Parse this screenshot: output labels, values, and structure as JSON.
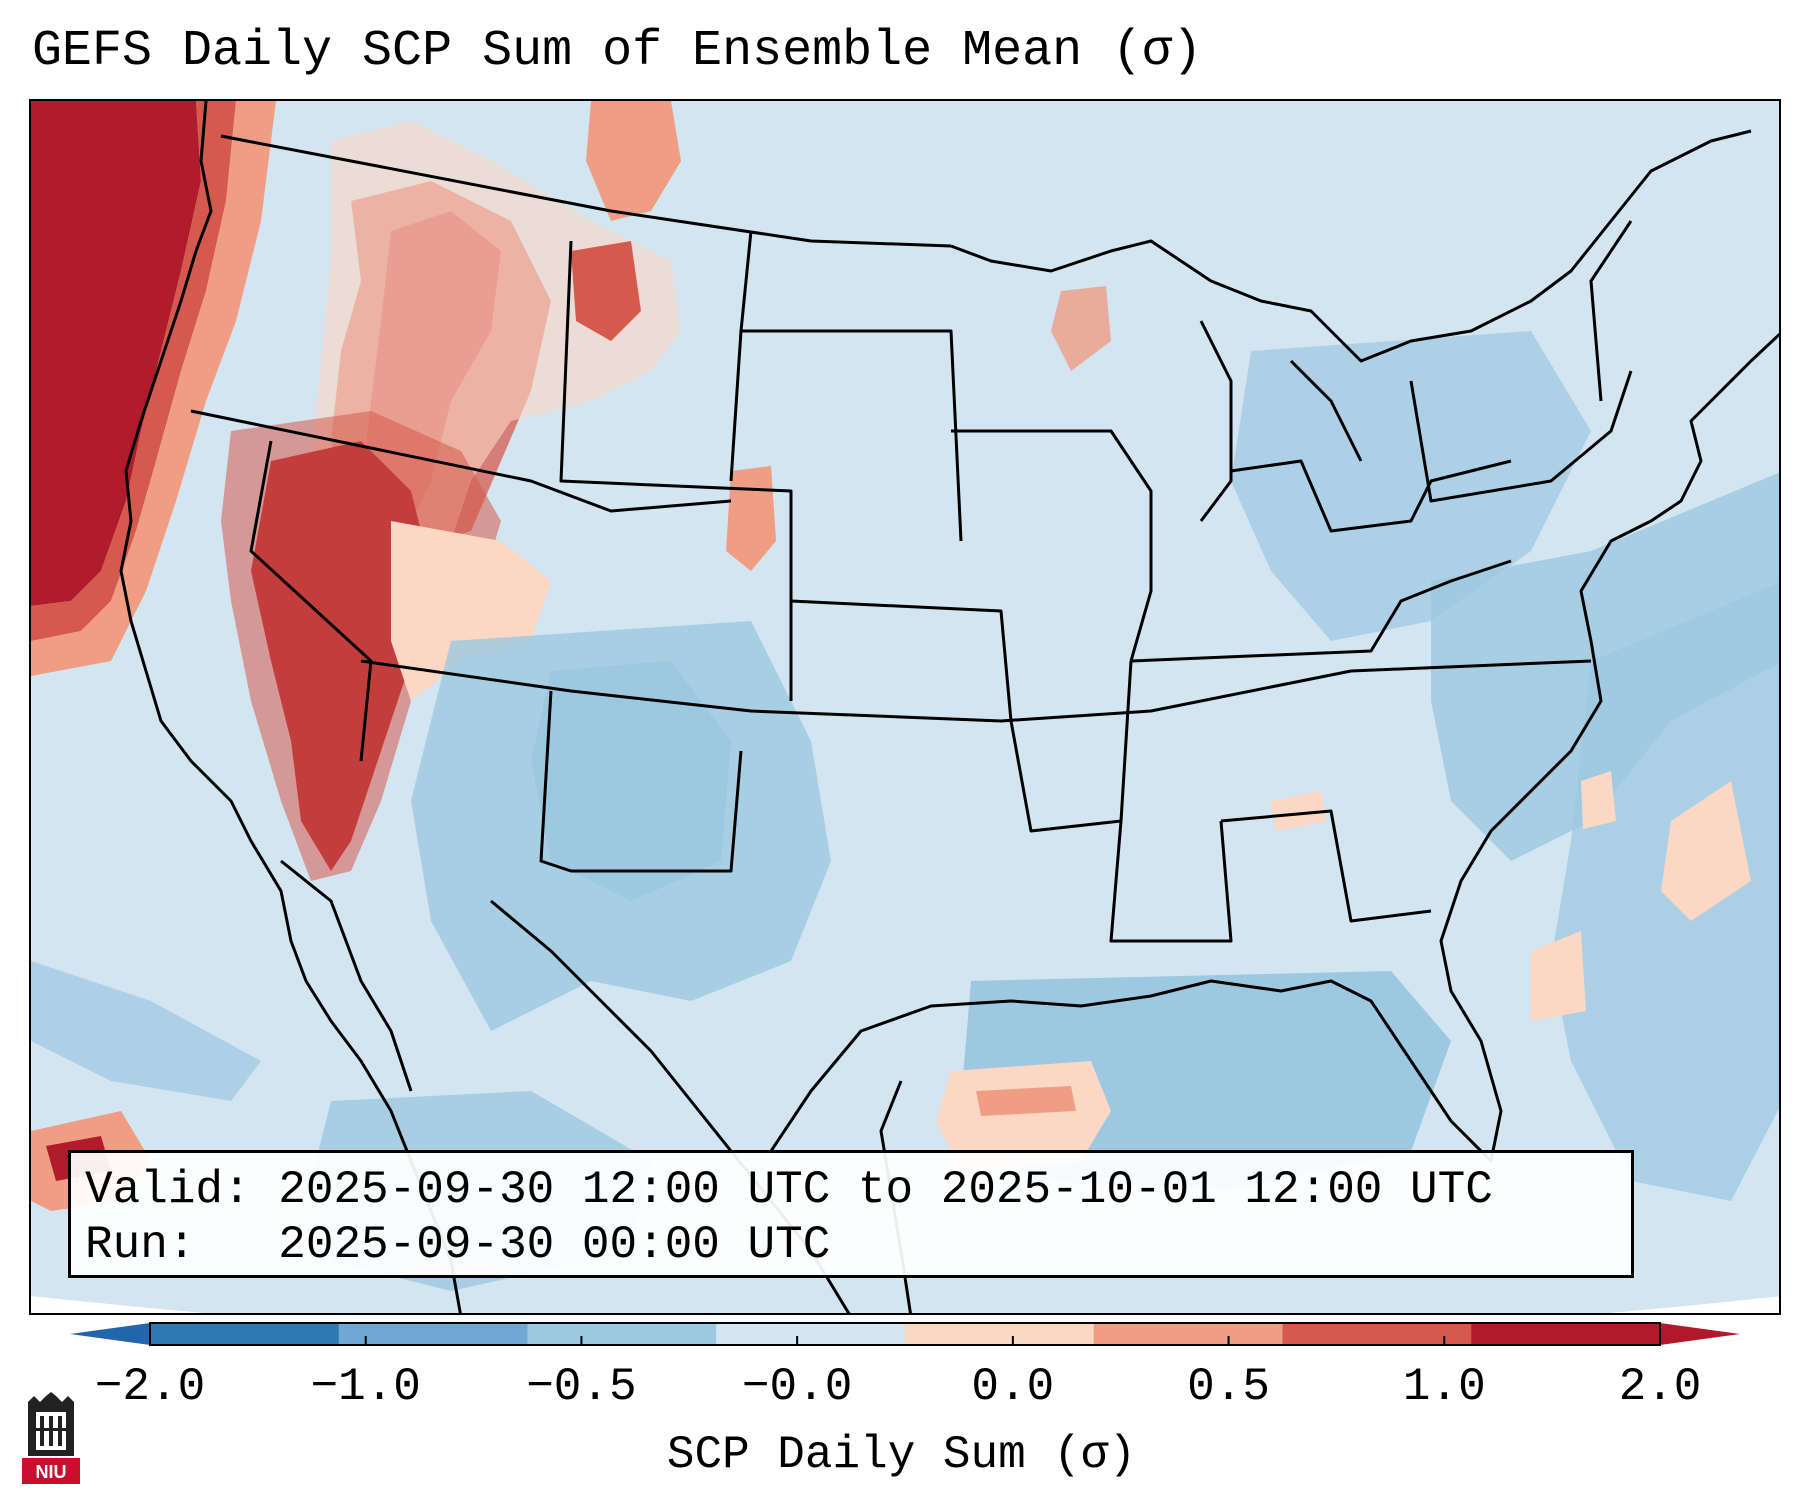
{
  "title": "GEFS Daily SCP Sum of Ensemble Mean (σ)",
  "info": {
    "valid": "Valid: 2025-09-30 12:00 UTC to 2025-10-01 12:00 UTC",
    "run": "Run:   2025-09-30 00:00 UTC"
  },
  "colorbar": {
    "label": "SCP Daily Sum (σ)",
    "ticks": [
      "−2.0",
      "−1.0",
      "−0.5",
      "−0.0",
      "0.0",
      "0.5",
      "1.0",
      "2.0"
    ],
    "bin_colors": [
      "#2f79b5",
      "#6fa8d3",
      "#9dc8e1",
      "#d5e6f2",
      "#fbd7c4",
      "#ef9e84",
      "#d55a4d",
      "#b01c2c"
    ],
    "extend_min_color": "#2166ac",
    "extend_max_color": "#b2182b"
  },
  "map": {
    "ocean_color": "#d2e5f1",
    "land_color": "#d2e5f1",
    "field": {
      "variable": "SCP Daily Sum anomaly",
      "units": "σ",
      "regions": [
        {
          "area": "Pacific Northwest offshore",
          "value": 2.0
        },
        {
          "area": "Northern Rockies (Idaho / Montana)",
          "value": 1.5
        },
        {
          "area": "Nevada / Utah",
          "value": 1.5
        },
        {
          "area": "Eastern Colorado",
          "value": 0.5
        },
        {
          "area": "Gulf of Mexico (central)",
          "value": 0.5
        },
        {
          "area": "Western Atlantic patches",
          "value": 0.25
        },
        {
          "area": "Southwest / New Mexico / Texas",
          "value": -0.75
        },
        {
          "area": "Mid-Atlantic / Great Lakes",
          "value": -0.75
        },
        {
          "area": "Gulf of Mexico (south)",
          "value": -0.75
        }
      ]
    }
  },
  "logo": {
    "text": "NIU",
    "color": "#c8102e"
  }
}
